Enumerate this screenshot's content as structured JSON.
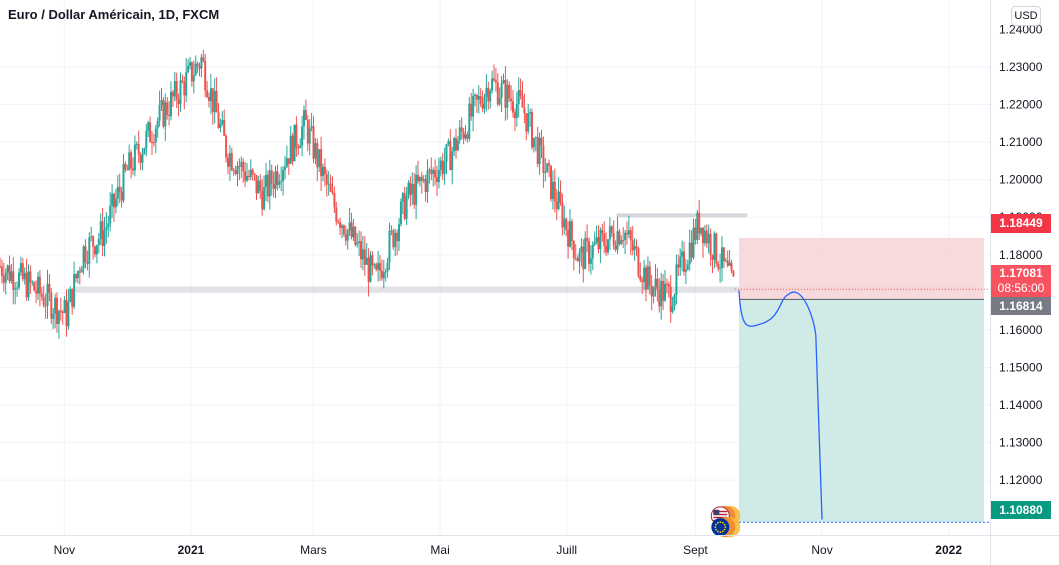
{
  "header": {
    "title": "Euro / Dollar Américain, 1D, FXCM",
    "currency_button": "USD"
  },
  "price_tags": {
    "stop_loss": {
      "label": "1.18449",
      "color": "#f23645"
    },
    "current": {
      "label": "1.17081",
      "countdown": "08:56:00",
      "color": "#f7525f"
    },
    "entry": {
      "label": "1.16814",
      "color": "#787b86"
    },
    "target": {
      "label": "1.10880",
      "color": "#089981"
    }
  },
  "colors": {
    "up_candle": "#26a69a",
    "down_candle": "#ef5350",
    "stop_zone": "#f7d6d8",
    "target_zone": "#cdeae6",
    "projection": "#2962ff",
    "grid": "#f0f3fa"
  },
  "chart_data": {
    "type": "candlestick",
    "title": "Euro / Dollar Américain, 1D, FXCM",
    "instrument": "EUR/USD",
    "interval": "1D",
    "source": "FXCM",
    "currency": "USD",
    "x_labels": [
      "Nov",
      "2021",
      "Mars",
      "Mai",
      "Juill",
      "Sept",
      "Nov",
      "2022"
    ],
    "y_ticks": [
      1.12,
      1.13,
      1.14,
      1.15,
      1.16,
      1.17,
      1.18,
      1.19,
      1.2,
      1.21,
      1.22,
      1.23
    ],
    "ylim": [
      1.1055,
      1.2465
    ],
    "price_path": [
      {
        "date": "2020-10-01",
        "price": 1.177
      },
      {
        "date": "2020-10-15",
        "price": 1.172
      },
      {
        "date": "2020-11-02",
        "price": 1.164
      },
      {
        "date": "2020-11-10",
        "price": 1.181
      },
      {
        "date": "2020-11-20",
        "price": 1.186
      },
      {
        "date": "2020-12-01",
        "price": 1.202
      },
      {
        "date": "2020-12-15",
        "price": 1.215
      },
      {
        "date": "2021-01-06",
        "price": 1.232
      },
      {
        "date": "2021-01-18",
        "price": 1.208
      },
      {
        "date": "2021-02-05",
        "price": 1.196
      },
      {
        "date": "2021-02-25",
        "price": 1.215
      },
      {
        "date": "2021-03-10",
        "price": 1.194
      },
      {
        "date": "2021-03-31",
        "price": 1.173
      },
      {
        "date": "2021-04-15",
        "price": 1.195
      },
      {
        "date": "2021-05-05",
        "price": 1.206
      },
      {
        "date": "2021-05-25",
        "price": 1.226
      },
      {
        "date": "2021-06-10",
        "price": 1.219
      },
      {
        "date": "2021-06-25",
        "price": 1.196
      },
      {
        "date": "2021-07-07",
        "price": 1.179
      },
      {
        "date": "2021-07-28",
        "price": 1.187
      },
      {
        "date": "2021-08-10",
        "price": 1.172
      },
      {
        "date": "2021-08-20",
        "price": 1.169
      },
      {
        "date": "2021-09-03",
        "price": 1.189
      },
      {
        "date": "2021-09-20",
        "price": 1.171
      }
    ],
    "horizontal_levels": [
      {
        "name": "support",
        "price": 1.1705
      },
      {
        "name": "resistance",
        "price": 1.1905
      }
    ],
    "short_position": {
      "entry": 1.16814,
      "stop": 1.18449,
      "target": 1.1088,
      "current_price": 1.17081,
      "countdown": "08:56:00",
      "start": "2021-09-22",
      "end": "2022-01-18"
    },
    "projection_path": [
      {
        "date": "2021-09-22",
        "price": 1.1705
      },
      {
        "date": "2021-10-02",
        "price": 1.1615
      },
      {
        "date": "2021-10-16",
        "price": 1.1695
      },
      {
        "date": "2021-10-22",
        "price": 1.1702
      },
      {
        "date": "2021-10-29",
        "price": 1.1585
      },
      {
        "date": "2021-11-01",
        "price": 1.1095
      }
    ],
    "event_markers": [
      "US flag",
      "EU flag"
    ]
  }
}
